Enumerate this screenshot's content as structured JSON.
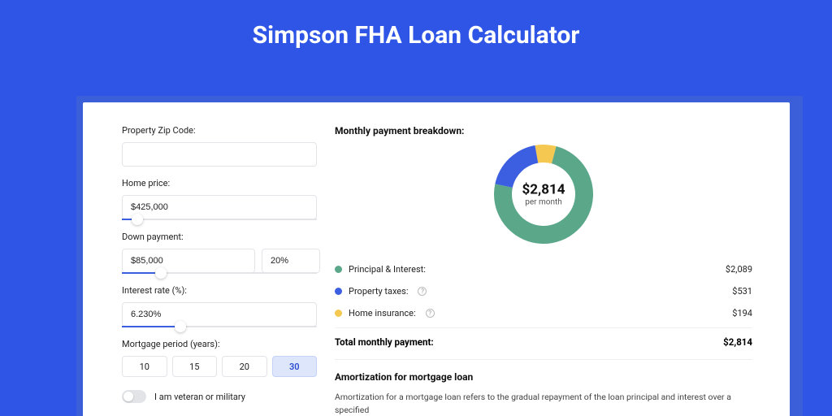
{
  "page": {
    "title": "Simpson FHA Loan Calculator",
    "background_color": "#2f55e6",
    "card_bg": "#ffffff"
  },
  "form": {
    "zip": {
      "label": "Property Zip Code:",
      "value": ""
    },
    "price": {
      "label": "Home price:",
      "value": "$425,000",
      "slider_pct": 8
    },
    "down": {
      "label": "Down payment:",
      "value": "$85,000",
      "pct": "20%",
      "slider_pct": 20
    },
    "rate": {
      "label": "Interest rate (%):",
      "value": "6.230%",
      "slider_pct": 30
    },
    "period": {
      "label": "Mortgage period (years):",
      "options": [
        "10",
        "15",
        "20",
        "30"
      ],
      "selected": "30"
    },
    "veteran": {
      "label": "I am veteran or military",
      "on": false
    }
  },
  "breakdown": {
    "heading": "Monthly payment breakdown:",
    "donut": {
      "amount": "$2,814",
      "sub": "per month",
      "size": 122,
      "thickness": 22,
      "bg": "#ffffff",
      "slices": [
        {
          "color": "#5aa78a",
          "pct": 74.2
        },
        {
          "color": "#3b5fe0",
          "pct": 18.9
        },
        {
          "color": "#f4c851",
          "pct": 6.9
        }
      ]
    },
    "items": [
      {
        "label": "Principal & Interest:",
        "value": "$2,089",
        "color": "#5aa78a",
        "info": false
      },
      {
        "label": "Property taxes:",
        "value": "$531",
        "color": "#3b5fe0",
        "info": true
      },
      {
        "label": "Home insurance:",
        "value": "$194",
        "color": "#f4c851",
        "info": true
      }
    ],
    "total": {
      "label": "Total monthly payment:",
      "value": "$2,814"
    }
  },
  "amort": {
    "heading": "Amortization for mortgage loan",
    "text": "Amortization for a mortgage loan refers to the gradual repayment of the loan principal and interest over a specified"
  }
}
